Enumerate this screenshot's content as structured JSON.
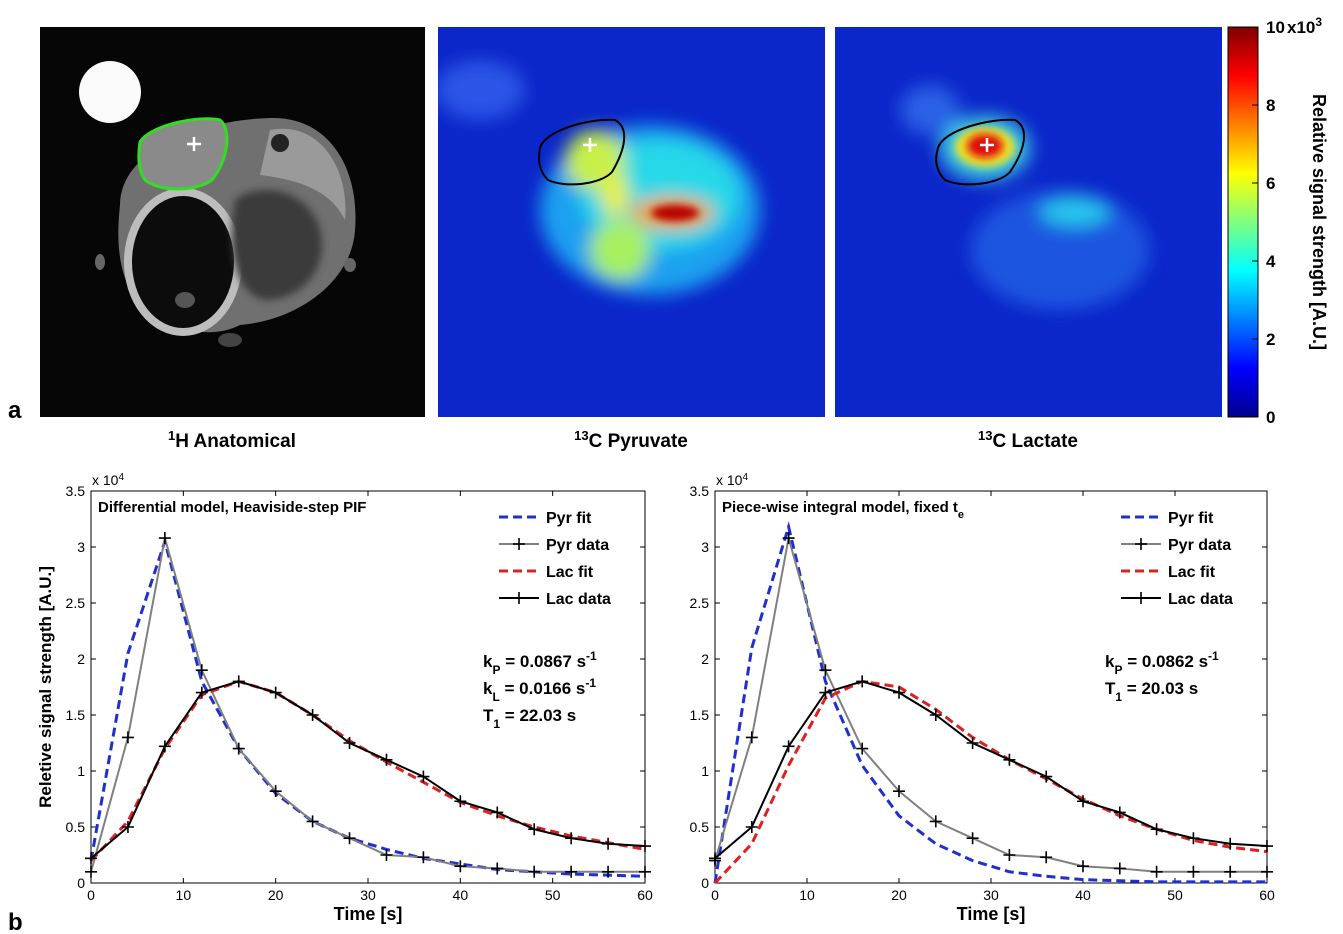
{
  "figure": {
    "panel_labels": [
      "a",
      "b"
    ],
    "images": [
      {
        "sup": "1",
        "text": "H Anatomical"
      },
      {
        "sup": "13",
        "text": "C Pyruvate"
      },
      {
        "sup": "13",
        "text": "C Lactate"
      }
    ],
    "colorbar": {
      "label": "Relative signal strength [A.U.]",
      "multiplier": "x10",
      "multiplier_exp": "3",
      "colormap": "jet",
      "ylim": [
        0,
        10
      ],
      "yticks": [
        0,
        2,
        4,
        6,
        8,
        10
      ]
    }
  },
  "chart_data": [
    {
      "type": "line",
      "title": "Differential model, Heaviside-step PIF",
      "multiplier": "x 10",
      "multiplier_exp": "4",
      "xlabel": "Time [s]",
      "ylabel": "Reletive signal strength [A.U.]",
      "x": [
        0,
        4,
        8,
        12,
        16,
        20,
        24,
        28,
        32,
        36,
        40,
        44,
        48,
        52,
        56,
        60
      ],
      "xlim": [
        0,
        60
      ],
      "xticks": [
        0,
        10,
        20,
        30,
        40,
        50,
        60
      ],
      "ylim": [
        0,
        3.5
      ],
      "yticks": [
        0,
        0.5,
        1,
        1.5,
        2,
        2.5,
        3,
        3.5
      ],
      "legend": "upper right",
      "annotation": [
        [
          {
            "text": "k"
          },
          {
            "sub": "P"
          },
          {
            "text": " = 0.0867 s"
          },
          {
            "sup": "-1"
          }
        ],
        [
          {
            "text": "k"
          },
          {
            "sub": "L"
          },
          {
            "text": " = 0.0166 s"
          },
          {
            "sup": "-1"
          }
        ],
        [
          {
            "text": "T"
          },
          {
            "sub": "1"
          },
          {
            "text": " = 22.03 s"
          }
        ]
      ],
      "series": [
        {
          "name": "Pyr fit",
          "color": "#1f2fd0",
          "dashed": true,
          "markers": false,
          "values": [
            0.2,
            2.05,
            3.05,
            1.8,
            1.2,
            0.8,
            0.55,
            0.4,
            0.3,
            0.22,
            0.17,
            0.12,
            0.1,
            0.08,
            0.07,
            0.06
          ]
        },
        {
          "name": "Pyr data",
          "color": "#808080",
          "dashed": false,
          "markers": true,
          "values": [
            0.1,
            1.3,
            3.08,
            1.9,
            1.2,
            0.82,
            0.55,
            0.4,
            0.25,
            0.23,
            0.15,
            0.13,
            0.1,
            0.1,
            0.1,
            0.1
          ]
        },
        {
          "name": "Lac fit",
          "color": "#dd2020",
          "dashed": true,
          "markers": false,
          "values": [
            0.2,
            0.55,
            1.2,
            1.68,
            1.8,
            1.7,
            1.5,
            1.27,
            1.08,
            0.9,
            0.72,
            0.6,
            0.5,
            0.42,
            0.36,
            0.3
          ]
        },
        {
          "name": "Lac data",
          "color": "#000000",
          "dashed": false,
          "markers": true,
          "values": [
            0.22,
            0.5,
            1.22,
            1.7,
            1.8,
            1.7,
            1.5,
            1.25,
            1.1,
            0.95,
            0.73,
            0.63,
            0.48,
            0.4,
            0.35,
            0.33
          ]
        }
      ]
    },
    {
      "type": "line",
      "title": "Piece-wise integral model, fixed t",
      "title_sub": "e",
      "multiplier": "x 10",
      "multiplier_exp": "4",
      "xlabel": "Time [s]",
      "x": [
        0,
        4,
        8,
        12,
        16,
        20,
        24,
        28,
        32,
        36,
        40,
        44,
        48,
        52,
        56,
        60
      ],
      "xlim": [
        0,
        60
      ],
      "xticks": [
        0,
        10,
        20,
        30,
        40,
        50,
        60
      ],
      "ylim": [
        0,
        3.5
      ],
      "yticks": [
        0,
        0.5,
        1,
        1.5,
        2,
        2.5,
        3,
        3.5
      ],
      "legend": "upper right",
      "annotation": [
        [
          {
            "text": "k"
          },
          {
            "sub": "P"
          },
          {
            "text": " = 0.0862 s"
          },
          {
            "sup": "-1"
          }
        ],
        [
          {
            "text": "T"
          },
          {
            "sub": "1"
          },
          {
            "text": " = 20.03 s"
          }
        ]
      ],
      "series": [
        {
          "name": "Pyr fit",
          "color": "#1f2fd0",
          "dashed": true,
          "markers": false,
          "values": [
            0,
            2.1,
            3.18,
            1.8,
            1.05,
            0.6,
            0.35,
            0.2,
            0.1,
            0.06,
            0.03,
            0.02,
            0.01,
            0.01,
            0.01,
            0.01
          ]
        },
        {
          "name": "Pyr data",
          "color": "#808080",
          "dashed": false,
          "markers": true,
          "values": [
            0.2,
            1.3,
            3.08,
            1.9,
            1.2,
            0.82,
            0.55,
            0.4,
            0.25,
            0.23,
            0.15,
            0.13,
            0.1,
            0.1,
            0.1,
            0.1
          ]
        },
        {
          "name": "Lac fit",
          "color": "#dd2020",
          "dashed": true,
          "markers": false,
          "values": [
            0,
            0.35,
            1.05,
            1.65,
            1.8,
            1.75,
            1.55,
            1.3,
            1.1,
            0.93,
            0.75,
            0.6,
            0.48,
            0.38,
            0.32,
            0.28
          ]
        },
        {
          "name": "Lac data",
          "color": "#000000",
          "dashed": false,
          "markers": true,
          "values": [
            0.22,
            0.5,
            1.22,
            1.7,
            1.8,
            1.7,
            1.5,
            1.25,
            1.1,
            0.95,
            0.73,
            0.63,
            0.48,
            0.4,
            0.35,
            0.33
          ]
        }
      ]
    }
  ]
}
